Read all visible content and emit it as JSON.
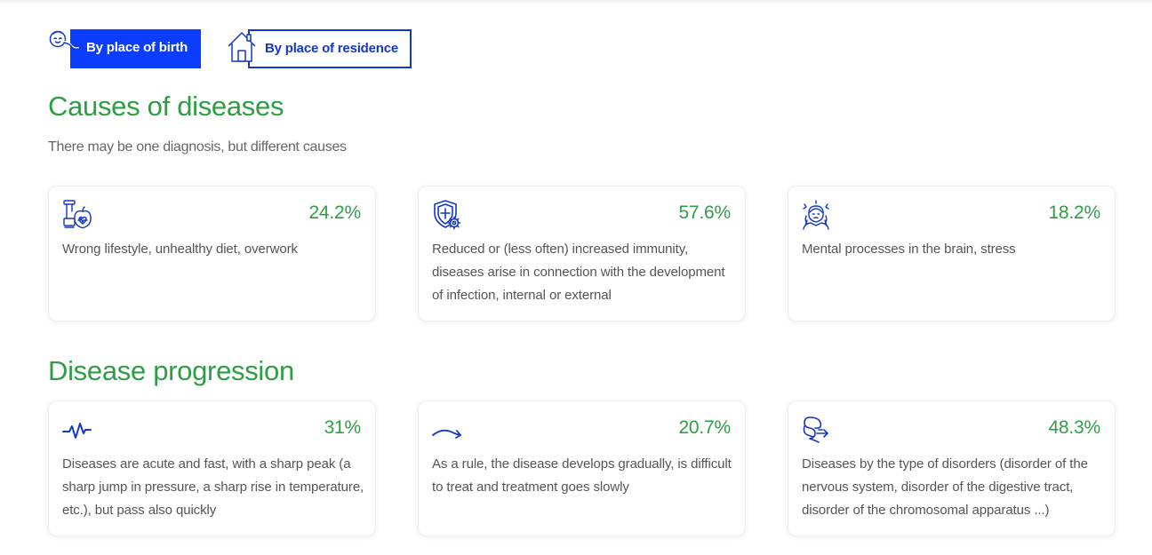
{
  "tabs": [
    {
      "label": "By place of birth",
      "icon": "baby-icon",
      "active": true
    },
    {
      "label": "By place of residence",
      "icon": "house-icon",
      "active": false
    }
  ],
  "causes": {
    "title": "Causes of diseases",
    "subtitle": "There may be one diagnosis, but different causes",
    "cards": [
      {
        "icon": "lifestyle-icon",
        "percent": "24.2%",
        "text": "Wrong lifestyle, unhealthy diet, overwork"
      },
      {
        "icon": "immunity-shield-icon",
        "percent": "57.6%",
        "text": "Reduced or (less often) increased immunity, diseases arise in connection with the development of infection, internal or external"
      },
      {
        "icon": "stress-head-icon",
        "percent": "18.2%",
        "text": "Mental processes in the brain, stress"
      }
    ]
  },
  "progression": {
    "title": "Disease progression",
    "cards": [
      {
        "icon": "pulse-icon",
        "percent": "31%",
        "text": "Diseases are acute and fast, with a sharp peak (a sharp jump in pressure, a sharp rise in temperature, etc.), but pass also quickly"
      },
      {
        "icon": "gradual-arrow-icon",
        "percent": "20.7%",
        "text": "As a rule, the disease develops gradually, is difficult to treat and treatment goes slowly"
      },
      {
        "icon": "digestive-tract-icon",
        "percent": "48.3%",
        "text": "Diseases by the type of disorders (disorder of the nervous system, disorder of the digestive tract, disorder of the chromosomal apparatus ...)"
      }
    ]
  },
  "colors": {
    "accent_blue": "#0a3dff",
    "outline_blue": "#1437c8",
    "heading_green": "#2e9e44",
    "body_text": "#555555"
  }
}
